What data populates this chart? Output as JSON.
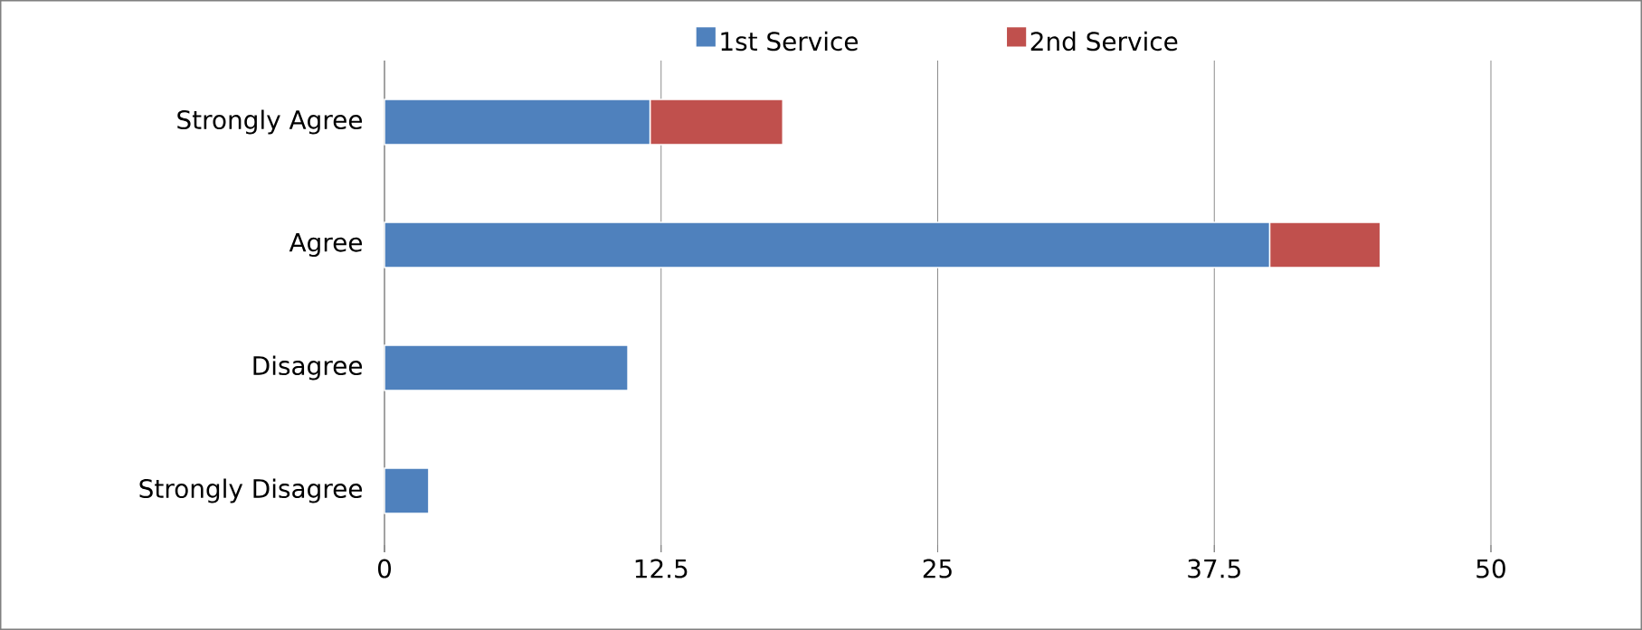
{
  "chart_data": {
    "type": "bar",
    "orientation": "horizontal",
    "stacked": true,
    "categories": [
      "Strongly Agree",
      "Agree",
      "Disagree",
      "Strongly Disagree"
    ],
    "series": [
      {
        "name": "1st Service",
        "color": "#4f81bd",
        "values": [
          12,
          40,
          11,
          2
        ]
      },
      {
        "name": "2nd Service",
        "color": "#c0504d",
        "values": [
          6,
          5,
          null,
          null
        ]
      }
    ],
    "xlim": [
      0,
      50
    ],
    "xticks": [
      0,
      12.5,
      25,
      37.5,
      50
    ],
    "grid": "x",
    "legend": "top"
  }
}
